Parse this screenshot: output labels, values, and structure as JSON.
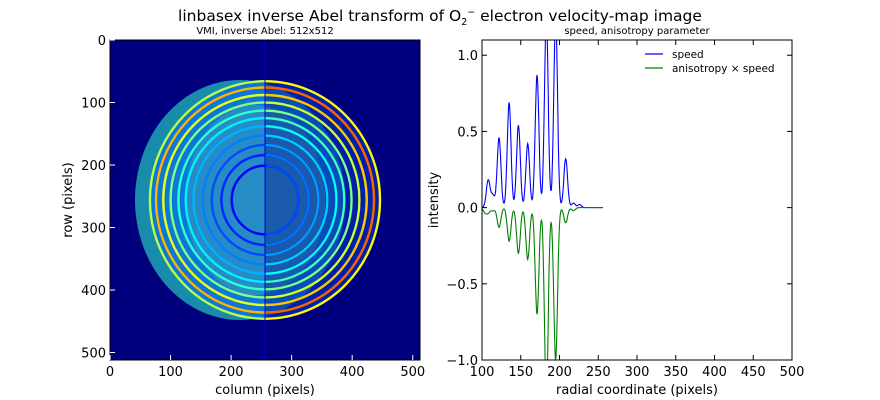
{
  "figure": {
    "suptitle_prefix": "linbasex inverse Abel transform of O",
    "suptitle_sub": "2",
    "suptitle_sup": "−",
    "suptitle_suffix": " electron velocity-map image"
  },
  "chart_data": [
    {
      "type": "heatmap",
      "title": "VMI, inverse Abel: 512x512",
      "xlabel": "column (pixels)",
      "ylabel": "row (pixels)",
      "xlim": [
        0,
        512
      ],
      "ylim": [
        512,
        0
      ],
      "xticks": [
        "0",
        "100",
        "200",
        "300",
        "400",
        "500"
      ],
      "yticks": [
        "0",
        "100",
        "200",
        "300",
        "400",
        "500"
      ],
      "colormap": "jet",
      "background_color": "#00007f",
      "center": [
        256,
        256
      ],
      "rings": [
        {
          "radius": 190,
          "intensity": 0.55
        },
        {
          "radius": 180,
          "intensity": 0.7
        },
        {
          "radius": 168,
          "intensity": 0.6
        },
        {
          "radius": 156,
          "intensity": 0.5
        },
        {
          "radius": 143,
          "intensity": 0.42
        },
        {
          "radius": 131,
          "intensity": 0.36
        },
        {
          "radius": 118,
          "intensity": 0.3
        },
        {
          "radius": 103,
          "intensity": 0.25
        },
        {
          "radius": 88,
          "intensity": 0.2
        },
        {
          "radius": 72,
          "intensity": 0.16
        },
        {
          "radius": 55,
          "intensity": 0.12
        }
      ]
    },
    {
      "type": "line",
      "title": "speed, anisotropy parameter",
      "xlabel": "radial coordinate (pixels)",
      "ylabel": "intensity",
      "xlim": [
        100,
        500
      ],
      "ylim": [
        -1.0,
        1.1
      ],
      "xticks": [
        "100",
        "150",
        "200",
        "250",
        "300",
        "350",
        "400",
        "450",
        "500"
      ],
      "yticks": [
        "1.0",
        "0.5",
        "0.0",
        "−0.5",
        "−1.0"
      ],
      "legend_position": "top-right",
      "series": [
        {
          "name": "speed",
          "color": "#0000ff",
          "peaks": [
            {
              "x": 108,
              "y": 0.18
            },
            {
              "x": 114,
              "y": 0.08
            },
            {
              "x": 122,
              "y": 0.46
            },
            {
              "x": 135,
              "y": 0.69
            },
            {
              "x": 147,
              "y": 0.54
            },
            {
              "x": 159,
              "y": 0.42
            },
            {
              "x": 171,
              "y": 0.87
            },
            {
              "x": 183,
              "y": 1.25
            },
            {
              "x": 195,
              "y": 1.25
            },
            {
              "x": 208,
              "y": 0.32
            },
            {
              "x": 218,
              "y": 0.03
            },
            {
              "x": 226,
              "y": 0.02
            }
          ]
        },
        {
          "name": "anisotropy × speed",
          "color": "#008000",
          "peaks": [
            {
              "x": 104,
              "y": -0.03
            },
            {
              "x": 108,
              "y": -0.03
            },
            {
              "x": 114,
              "y": -0.02
            },
            {
              "x": 122,
              "y": -0.13
            },
            {
              "x": 135,
              "y": -0.22
            },
            {
              "x": 147,
              "y": -0.3
            },
            {
              "x": 159,
              "y": -0.34
            },
            {
              "x": 171,
              "y": -0.7
            },
            {
              "x": 183,
              "y": -1.25
            },
            {
              "x": 195,
              "y": -1.0
            },
            {
              "x": 208,
              "y": -0.1
            },
            {
              "x": 218,
              "y": -0.02
            }
          ]
        }
      ],
      "x_end": 256
    }
  ]
}
